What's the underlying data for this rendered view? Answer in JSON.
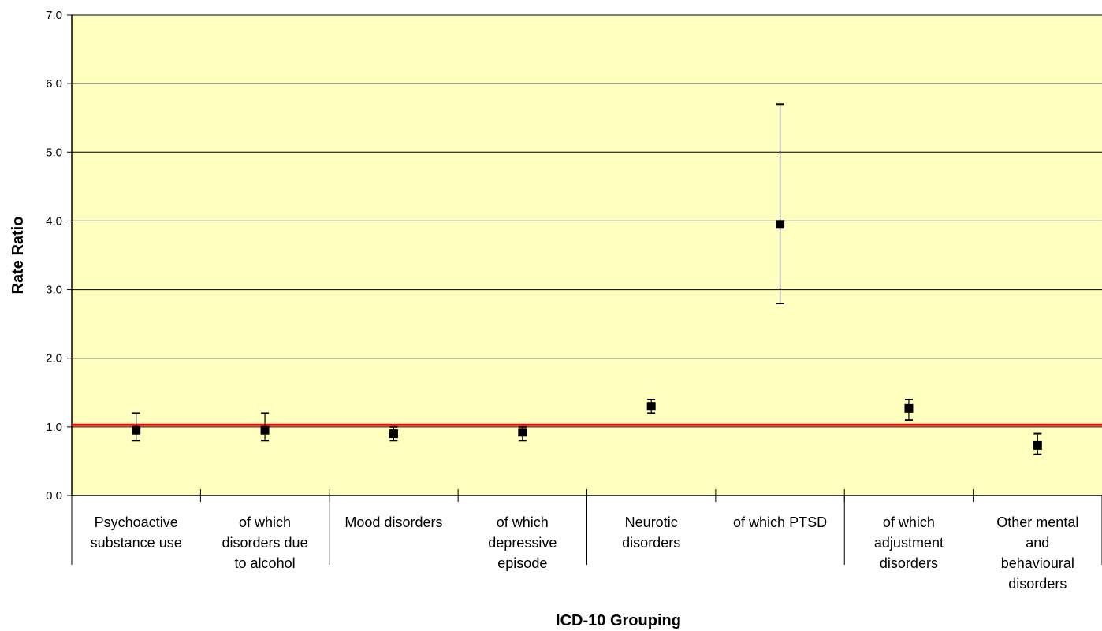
{
  "chart_data": {
    "type": "scatter",
    "title": "",
    "xlabel": "ICD-10 Grouping",
    "ylabel": "Rate Ratio",
    "ylim": [
      0,
      7
    ],
    "yticks": [
      "0.0",
      "1.0",
      "2.0",
      "3.0",
      "4.0",
      "5.0",
      "6.0",
      "7.0"
    ],
    "grid": true,
    "reference_line": 1.03,
    "colors": {
      "plot_background": "#ffffc0",
      "gridline": "#000000",
      "reference_line": "#ff0000",
      "marker": "#000000"
    },
    "categories": [
      [
        "Psychoactive",
        "substance use"
      ],
      [
        "of which",
        "disorders due",
        "to alcohol"
      ],
      [
        "Mood disorders"
      ],
      [
        "of which",
        "depressive",
        "episode"
      ],
      [
        "Neurotic",
        "disorders"
      ],
      [
        "of which PTSD"
      ],
      [
        "of which",
        "adjustment",
        "disorders"
      ],
      [
        "Other mental",
        "and",
        "behavioural",
        "disorders"
      ]
    ],
    "series": [
      {
        "values": [
          0.95,
          0.95,
          0.9,
          0.92,
          1.3,
          3.95,
          1.27,
          0.73
        ],
        "lower": [
          0.8,
          0.8,
          0.8,
          0.8,
          1.2,
          2.8,
          1.1,
          0.6
        ],
        "upper": [
          1.2,
          1.2,
          1.0,
          1.0,
          1.4,
          5.7,
          1.4,
          0.9
        ]
      }
    ]
  }
}
